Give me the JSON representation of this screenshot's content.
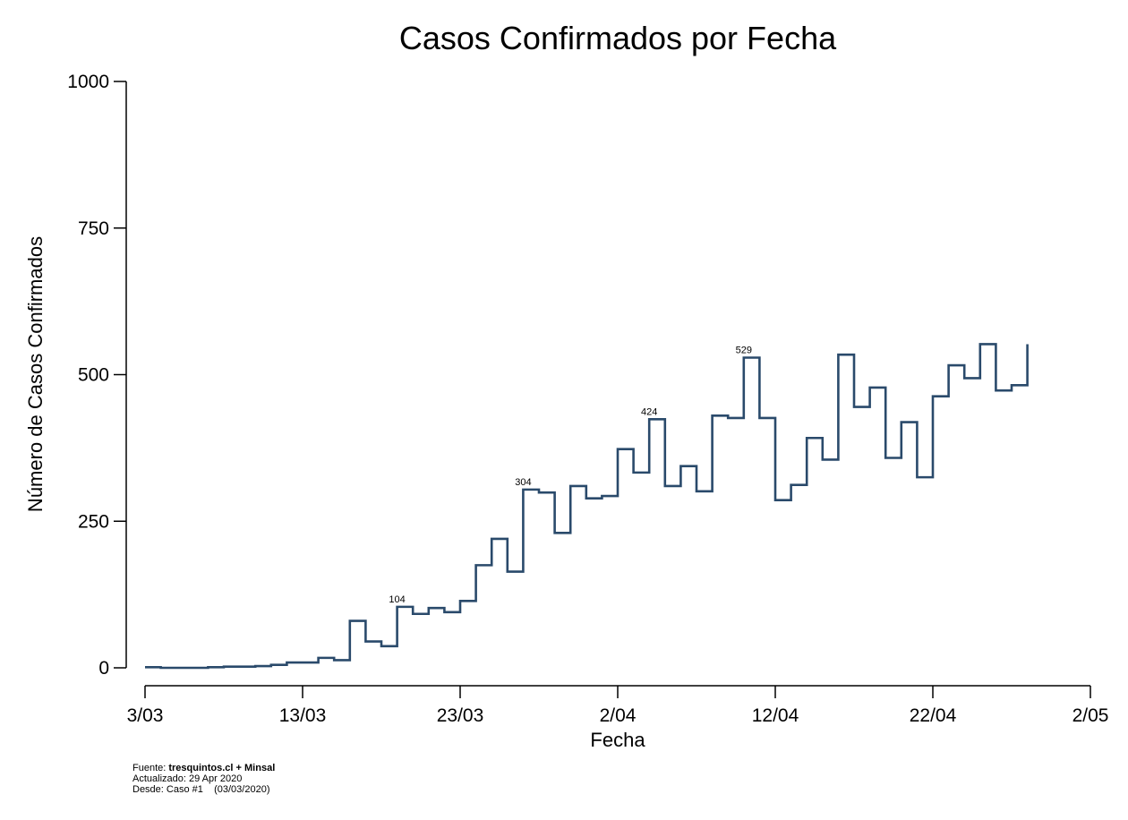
{
  "chart_data": {
    "type": "line",
    "step": true,
    "title": "Casos Confirmados por Fecha",
    "xlabel": "Fecha",
    "ylabel": "Número de Casos Confirmados",
    "x_start": "3/03",
    "x_end": "28/04",
    "xlim": [
      "3/03",
      "2/05"
    ],
    "ylim": [
      0,
      1000
    ],
    "x_ticks": [
      "3/03",
      "13/03",
      "23/03",
      "2/04",
      "12/04",
      "22/04",
      "2/05"
    ],
    "y_ticks": [
      "0",
      "250",
      "500",
      "750",
      "1000"
    ],
    "line_color": "#2a4a6b",
    "grid": false,
    "legend": "none",
    "values": [
      1,
      0,
      0,
      0,
      1,
      2,
      2,
      3,
      5,
      9,
      9,
      17,
      13,
      80,
      45,
      37,
      104,
      92,
      102,
      95,
      114,
      175,
      220,
      164,
      304,
      299,
      230,
      310,
      289,
      293,
      373,
      333,
      424,
      310,
      344,
      301,
      430,
      426,
      529,
      426,
      286,
      312,
      392,
      355,
      534,
      445,
      478,
      358,
      419,
      325,
      463,
      516,
      494,
      552,
      473,
      482,
      552
    ],
    "annotations": [
      {
        "x": "19/03",
        "text": "104"
      },
      {
        "x": "27/03",
        "text": "304"
      },
      {
        "x": "4/04",
        "text": "424"
      },
      {
        "x": "10/04",
        "text": "529"
      }
    ]
  },
  "footer": {
    "source_prefix": "Fuente: ",
    "source_bold": "tresquintos.cl + Minsal",
    "updated": "Actualizado: 29 Apr 2020",
    "since": "Desde: Caso #1    (03/03/2020)"
  }
}
